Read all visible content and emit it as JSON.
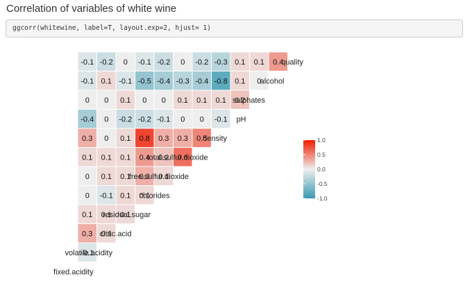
{
  "page": {
    "title": "Correlation of variables of white wine",
    "code": "ggcorr(whitewine, label=T, layout.exp=2, hjust= 1)"
  },
  "chart_data": {
    "type": "heatmap",
    "variables": [
      "fixed.acidity",
      "volatile.acidity",
      "citric.acid",
      "residual.sugar",
      "chlorides",
      "free.sulfur.dioxide",
      "total.sulfur.dioxide",
      "density",
      "pH",
      "sulphates",
      "alcohol",
      "quality"
    ],
    "rows": [
      {
        "name": "volatile.acidity",
        "values": [
          -0.1
        ]
      },
      {
        "name": "citric.acid",
        "values": [
          0.3,
          0.1
        ]
      },
      {
        "name": "residual.sugar",
        "values": [
          0.1,
          0.1,
          0.1
        ]
      },
      {
        "name": "chlorides",
        "values": [
          0,
          -0.1,
          0.1,
          0.1
        ]
      },
      {
        "name": "free.sulfur.dioxide",
        "values": [
          0,
          0.1,
          0.1,
          0.3,
          0.1
        ]
      },
      {
        "name": "total.sulfur.dioxide",
        "values": [
          0.1,
          0.1,
          0.1,
          0.4,
          0.2,
          0.6
        ]
      },
      {
        "name": "density",
        "values": [
          0.3,
          0,
          0.1,
          0.8,
          0.3,
          0.3,
          0.5
        ]
      },
      {
        "name": "pH",
        "values": [
          -0.4,
          0,
          -0.2,
          -0.2,
          -0.1,
          0,
          0,
          -0.1
        ]
      },
      {
        "name": "sulphates",
        "values": [
          0,
          0,
          0.1,
          0,
          0,
          0.1,
          0.1,
          0.1,
          0.2
        ]
      },
      {
        "name": "alcohol",
        "values": [
          -0.1,
          0.1,
          -0.1,
          -0.5,
          -0.4,
          -0.3,
          -0.4,
          -0.8,
          0.1,
          0
        ]
      },
      {
        "name": "quality",
        "values": [
          -0.1,
          -0.2,
          0,
          -0.1,
          -0.2,
          0,
          -0.2,
          -0.3,
          0.1,
          0.1,
          0.4
        ]
      }
    ],
    "color_scale": {
      "low": "#3A9AB2",
      "mid": "#EEEEEE",
      "high": "#F11B00",
      "limits": [
        -1,
        1
      ]
    },
    "legend": {
      "ticks": [
        "1.0",
        "0.5",
        "0.0",
        "-0.5",
        "-1.0"
      ],
      "placement": "right"
    }
  }
}
